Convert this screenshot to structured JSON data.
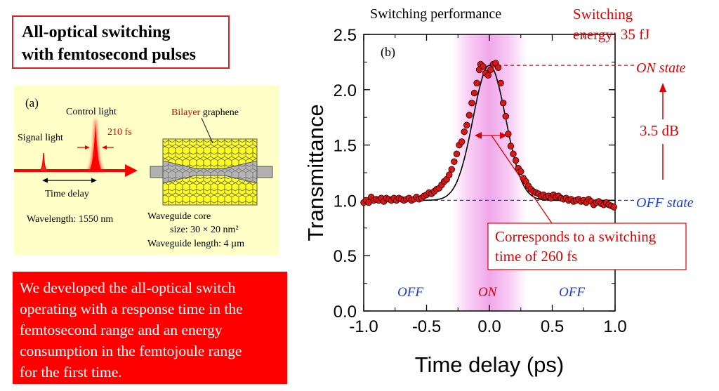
{
  "title_lines": [
    "All-optical switching",
    "with femtosecond pulses"
  ],
  "panel_a": {
    "label": "(a)",
    "control_light": "Control light",
    "signal_light": "Signal light",
    "pulse_width": "210 fs",
    "time_delay": "Time delay",
    "wavelength": "Wavelength: 1550 nm",
    "bilayer": "Bilayer",
    "graphene": " graphene",
    "core_line1": "Waveguide core",
    "core_line2": "size: 30 × 20 nm²",
    "length": "Waveguide length: 4 µm"
  },
  "info_lines": [
    "We developed the all-optical switch",
    "operating with a response time in the",
    "femtosecond range and an energy",
    "consumption in the femtojoule range",
    "for the first time."
  ],
  "chart_data": {
    "type": "scatter",
    "title": "Switching performance",
    "panel_label": "(b)",
    "xlabel": "Time delay (ps)",
    "ylabel": "Transmittance",
    "xlim": [
      -1.0,
      1.0
    ],
    "ylim": [
      0.0,
      2.5
    ],
    "x_ticks": [
      "-1.0",
      "-0.5",
      "0.0",
      "0.5",
      "1.0"
    ],
    "y_ticks": [
      "0.0",
      "0.5",
      "1.0",
      "1.5",
      "2.0",
      "2.5"
    ],
    "series": [
      {
        "marker_color": "#d81818",
        "points": [
          [
            -1.0,
            0.98
          ],
          [
            -0.98,
            1.0
          ],
          [
            -0.96,
            0.98
          ],
          [
            -0.94,
            1.03
          ],
          [
            -0.92,
            1.0
          ],
          [
            -0.9,
            1.01
          ],
          [
            -0.88,
            1.0
          ],
          [
            -0.86,
            1.02
          ],
          [
            -0.84,
            0.99
          ],
          [
            -0.82,
            1.02
          ],
          [
            -0.8,
            1.01
          ],
          [
            -0.78,
            1.0
          ],
          [
            -0.76,
            1.02
          ],
          [
            -0.74,
            1.0
          ],
          [
            -0.72,
            1.02
          ],
          [
            -0.7,
            1.01
          ],
          [
            -0.68,
            1.0
          ],
          [
            -0.66,
            1.01
          ],
          [
            -0.64,
            1.02
          ],
          [
            -0.62,
            1.0
          ],
          [
            -0.6,
            1.01
          ],
          [
            -0.58,
            1.03
          ],
          [
            -0.56,
            1.01
          ],
          [
            -0.54,
            1.02
          ],
          [
            -0.52,
            1.04
          ],
          [
            -0.5,
            1.05
          ],
          [
            -0.48,
            1.07
          ],
          [
            -0.46,
            1.06
          ],
          [
            -0.44,
            1.08
          ],
          [
            -0.42,
            1.1
          ],
          [
            -0.4,
            1.11
          ],
          [
            -0.38,
            1.14
          ],
          [
            -0.36,
            1.17
          ],
          [
            -0.34,
            1.19
          ],
          [
            -0.32,
            1.23
          ],
          [
            -0.3,
            1.28
          ],
          [
            -0.28,
            1.35
          ],
          [
            -0.26,
            1.42
          ],
          [
            -0.24,
            1.5
          ],
          [
            -0.22,
            1.53
          ],
          [
            -0.2,
            1.62
          ],
          [
            -0.18,
            1.68
          ],
          [
            -0.16,
            1.77
          ],
          [
            -0.14,
            1.88
          ],
          [
            -0.12,
            1.97
          ],
          [
            -0.1,
            2.06
          ],
          [
            -0.08,
            2.18
          ],
          [
            -0.07,
            2.23
          ],
          [
            -0.05,
            2.21
          ],
          [
            -0.03,
            2.15
          ],
          [
            -0.01,
            2.13
          ],
          [
            0.01,
            2.18
          ],
          [
            0.03,
            2.23
          ],
          [
            0.05,
            2.24
          ],
          [
            0.07,
            2.2
          ],
          [
            0.09,
            2.06
          ],
          [
            0.11,
            1.88
          ],
          [
            0.13,
            1.76
          ],
          [
            0.15,
            1.6
          ],
          [
            0.17,
            1.49
          ],
          [
            0.19,
            1.42
          ],
          [
            0.21,
            1.36
          ],
          [
            0.23,
            1.29
          ],
          [
            0.25,
            1.26
          ],
          [
            0.27,
            1.2
          ],
          [
            0.29,
            1.17
          ],
          [
            0.31,
            1.13
          ],
          [
            0.33,
            1.1
          ],
          [
            0.35,
            1.08
          ],
          [
            0.37,
            1.07
          ],
          [
            0.39,
            1.06
          ],
          [
            0.41,
            1.04
          ],
          [
            0.43,
            1.05
          ],
          [
            0.45,
            1.03
          ],
          [
            0.47,
            1.04
          ],
          [
            0.49,
            1.02
          ],
          [
            0.51,
            1.05
          ],
          [
            0.53,
            1.03
          ],
          [
            0.55,
            1.04
          ],
          [
            0.57,
            1.02
          ],
          [
            0.59,
            1.01
          ],
          [
            0.61,
            1.02
          ],
          [
            0.63,
            1.0
          ],
          [
            0.65,
            1.01
          ],
          [
            0.67,
            0.99
          ],
          [
            0.69,
            1.0
          ],
          [
            0.71,
            1.01
          ],
          [
            0.73,
            0.99
          ],
          [
            0.75,
            1.0
          ],
          [
            0.77,
            0.98
          ],
          [
            0.79,
            1.01
          ],
          [
            0.81,
            0.99
          ],
          [
            0.83,
            0.96
          ],
          [
            0.85,
            0.98
          ],
          [
            0.87,
            0.99
          ],
          [
            0.89,
            0.97
          ],
          [
            0.91,
            0.96
          ],
          [
            0.93,
            0.98
          ],
          [
            0.95,
            0.96
          ],
          [
            0.97,
            0.95
          ],
          [
            0.99,
            0.94
          ]
        ]
      }
    ],
    "fit_curve": {
      "baseline": 1.0,
      "peak": 2.22,
      "center": 0.0,
      "sigma_ps": 0.13,
      "color": "#000000"
    },
    "highlight_band_ps": [
      -0.3,
      0.3
    ],
    "highlight_color": "#f5b8f0",
    "annotations": {
      "switching_energy_line1": "Switching",
      "switching_energy_line2": "energy: 35 fJ",
      "on_state": "ON state",
      "off_state": "OFF state",
      "extinction": "3.5 dB",
      "switch_time_line1": "Corresponds to a switching",
      "switch_time_line2": "time of 260 fs",
      "region_off_left": "OFF",
      "region_on": "ON",
      "region_off_right": "OFF"
    },
    "on_level": 2.22,
    "off_level": 1.0,
    "grid": false
  }
}
